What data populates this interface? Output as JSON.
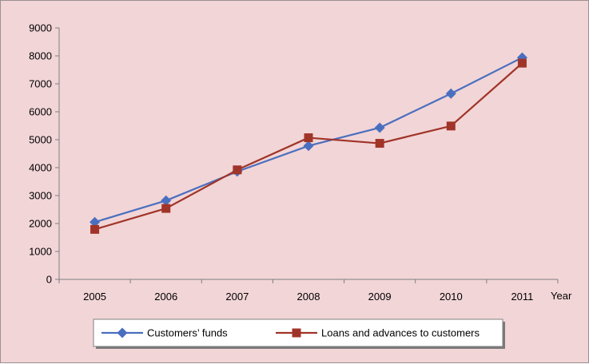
{
  "chart_data": {
    "type": "line",
    "title": "",
    "xlabel": "Year",
    "ylabel": "",
    "categories": [
      "2005",
      "2006",
      "2007",
      "2008",
      "2009",
      "2010",
      "2011"
    ],
    "ylim": [
      0,
      9000
    ],
    "yticks": [
      0,
      1000,
      2000,
      3000,
      4000,
      5000,
      6000,
      7000,
      8000,
      9000
    ],
    "grid": false,
    "legend_position": "bottom",
    "series": [
      {
        "name": "Customers’ funds",
        "color": "#4a6fbf",
        "marker": "diamond",
        "values": [
          2050,
          2820,
          3860,
          4780,
          5430,
          6650,
          7940
        ]
      },
      {
        "name": "Loans and advances to customers",
        "color": "#a03428",
        "marker": "square",
        "values": [
          1790,
          2540,
          3920,
          5070,
          4870,
          5490,
          7740
        ]
      }
    ]
  }
}
